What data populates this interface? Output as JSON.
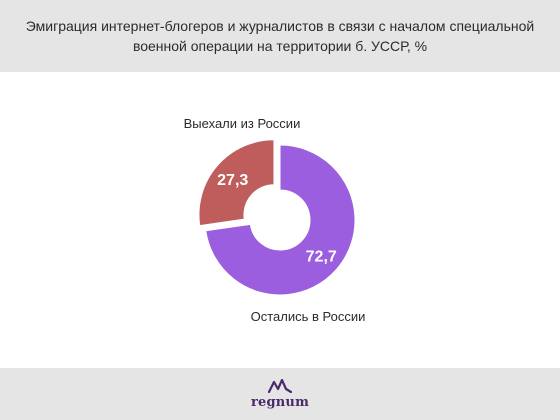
{
  "header": {
    "title": "Эмиграция интернет-блогеров и журналистов в связи с началом специальной военной операции на территории б. УССР, %"
  },
  "chart_data": {
    "type": "pie",
    "donut": true,
    "categories": [
      "Выехали из России",
      "Остались в России"
    ],
    "values": [
      27.3,
      72.7
    ],
    "value_labels": [
      "27,3",
      "72,7"
    ],
    "colors": [
      "#bf5d5d",
      "#9b5ede"
    ],
    "exploded_slice": "Выехали из России"
  },
  "footer": {
    "brand": "regnum"
  }
}
